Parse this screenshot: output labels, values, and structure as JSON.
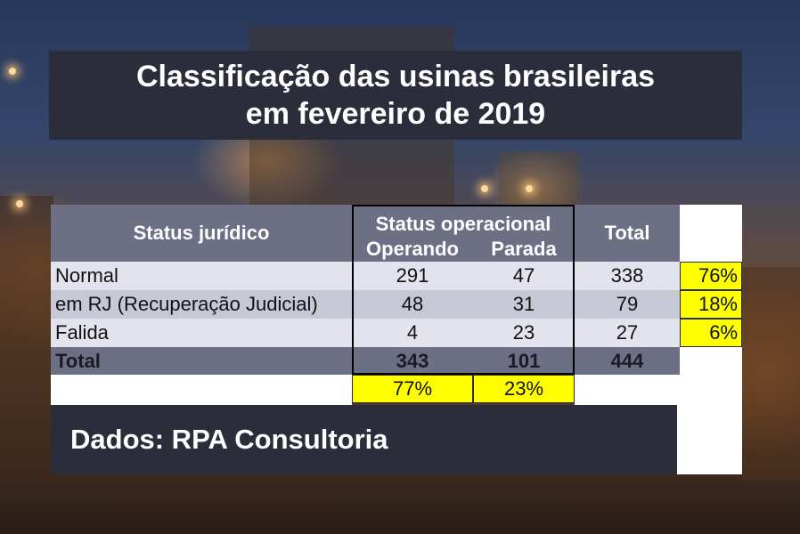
{
  "title": {
    "line1": "Classificação das usinas brasileiras",
    "line2": "em fevereiro de 2019"
  },
  "table": {
    "header": {
      "status_juridico": "Status jurídico",
      "status_operacional": "Status operacional",
      "operando": "Operando",
      "parada": "Parada",
      "total": "Total"
    },
    "rows": [
      {
        "label": "Normal",
        "operando": "291",
        "parada": "47",
        "total": "338",
        "pct": "76%"
      },
      {
        "label": "em RJ (Recuperação Judicial)",
        "operando": "48",
        "parada": "31",
        "total": "79",
        "pct": "18%"
      },
      {
        "label": "Falida",
        "operando": "4",
        "parada": "23",
        "total": "27",
        "pct": "6%"
      }
    ],
    "total_row": {
      "label": "Total",
      "operando": "343",
      "parada": "101",
      "total": "444"
    },
    "pct_row": {
      "operando": "77%",
      "parada": "23%"
    }
  },
  "source": "Dados: RPA Consultoria",
  "colors": {
    "dark_box": "#2b2d3a",
    "header": "#6d6f85",
    "highlight": "#ffff00"
  }
}
